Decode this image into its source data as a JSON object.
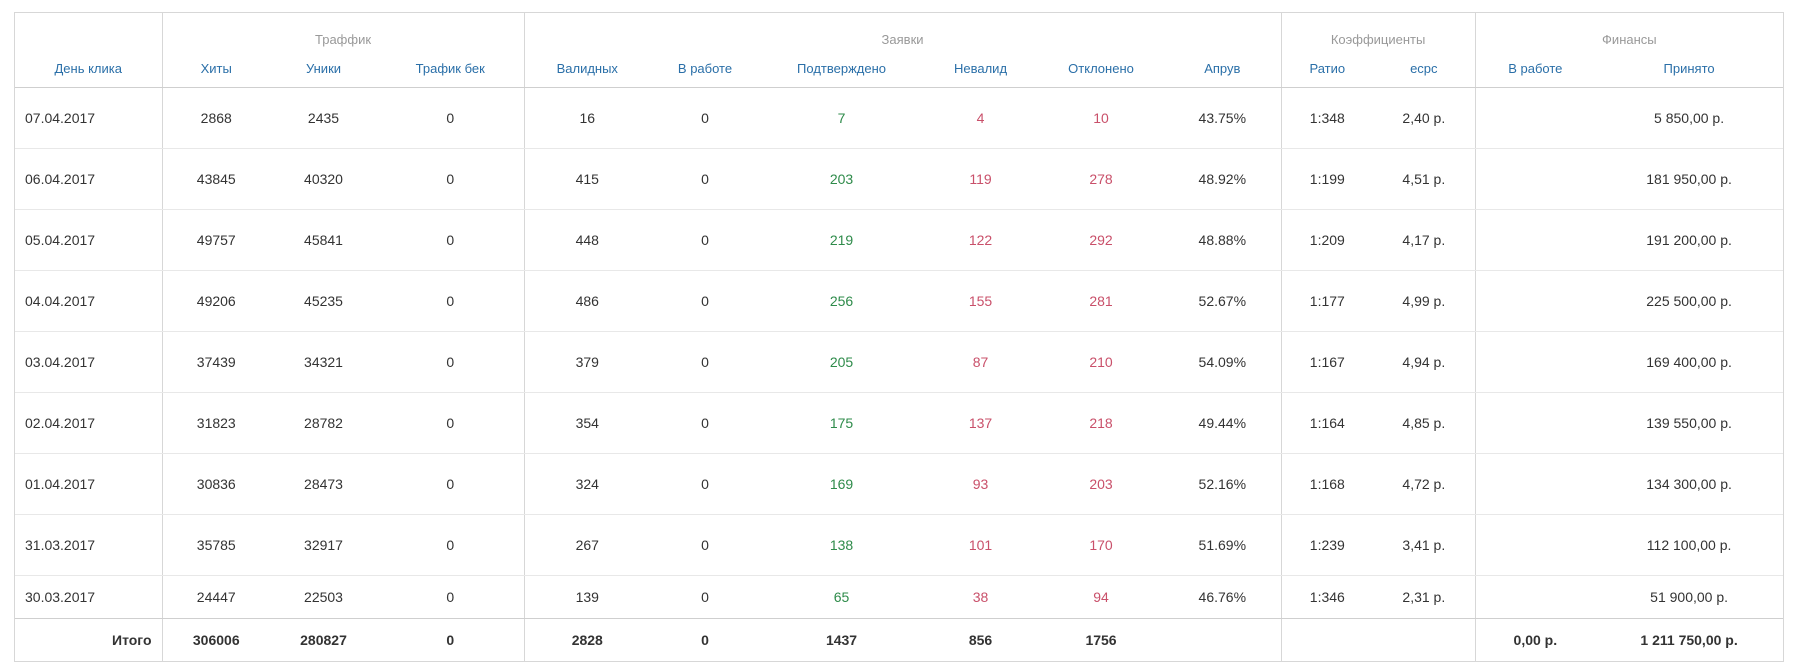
{
  "groups": {
    "traffic": "Траффик",
    "leads": "Заявки",
    "coeffs": "Коэффициенты",
    "finance": "Финансы"
  },
  "columns": {
    "day": "День клика",
    "hits": "Хиты",
    "uniques": "Уники",
    "traffic_back": "Трафик бек",
    "valid": "Валидных",
    "in_work": "В работе",
    "confirmed": "Подтверждено",
    "invalid": "Невалид",
    "rejected": "Отклонено",
    "approve": "Апрув",
    "ratio": "Ратио",
    "ecpc": "ecpc",
    "fin_in_work": "В работе",
    "accepted": "Принято"
  },
  "rows": [
    {
      "day": "07.04.2017",
      "hits": "2868",
      "uniques": "2435",
      "traffic_back": "0",
      "valid": "16",
      "in_work": "0",
      "confirmed": "7",
      "invalid": "4",
      "rejected": "10",
      "approve": "43.75%",
      "ratio": "1:348",
      "ecpc": "2,40 р.",
      "fin_in_work": "",
      "accepted": "5 850,00 р."
    },
    {
      "day": "06.04.2017",
      "hits": "43845",
      "uniques": "40320",
      "traffic_back": "0",
      "valid": "415",
      "in_work": "0",
      "confirmed": "203",
      "invalid": "119",
      "rejected": "278",
      "approve": "48.92%",
      "ratio": "1:199",
      "ecpc": "4,51 р.",
      "fin_in_work": "",
      "accepted": "181 950,00 р."
    },
    {
      "day": "05.04.2017",
      "hits": "49757",
      "uniques": "45841",
      "traffic_back": "0",
      "valid": "448",
      "in_work": "0",
      "confirmed": "219",
      "invalid": "122",
      "rejected": "292",
      "approve": "48.88%",
      "ratio": "1:209",
      "ecpc": "4,17 р.",
      "fin_in_work": "",
      "accepted": "191 200,00 р."
    },
    {
      "day": "04.04.2017",
      "hits": "49206",
      "uniques": "45235",
      "traffic_back": "0",
      "valid": "486",
      "in_work": "0",
      "confirmed": "256",
      "invalid": "155",
      "rejected": "281",
      "approve": "52.67%",
      "ratio": "1:177",
      "ecpc": "4,99 р.",
      "fin_in_work": "",
      "accepted": "225 500,00 р."
    },
    {
      "day": "03.04.2017",
      "hits": "37439",
      "uniques": "34321",
      "traffic_back": "0",
      "valid": "379",
      "in_work": "0",
      "confirmed": "205",
      "invalid": "87",
      "rejected": "210",
      "approve": "54.09%",
      "ratio": "1:167",
      "ecpc": "4,94 р.",
      "fin_in_work": "",
      "accepted": "169 400,00 р."
    },
    {
      "day": "02.04.2017",
      "hits": "31823",
      "uniques": "28782",
      "traffic_back": "0",
      "valid": "354",
      "in_work": "0",
      "confirmed": "175",
      "invalid": "137",
      "rejected": "218",
      "approve": "49.44%",
      "ratio": "1:164",
      "ecpc": "4,85 р.",
      "fin_in_work": "",
      "accepted": "139 550,00 р."
    },
    {
      "day": "01.04.2017",
      "hits": "30836",
      "uniques": "28473",
      "traffic_back": "0",
      "valid": "324",
      "in_work": "0",
      "confirmed": "169",
      "invalid": "93",
      "rejected": "203",
      "approve": "52.16%",
      "ratio": "1:168",
      "ecpc": "4,72 р.",
      "fin_in_work": "",
      "accepted": "134 300,00 р."
    },
    {
      "day": "31.03.2017",
      "hits": "35785",
      "uniques": "32917",
      "traffic_back": "0",
      "valid": "267",
      "in_work": "0",
      "confirmed": "138",
      "invalid": "101",
      "rejected": "170",
      "approve": "51.69%",
      "ratio": "1:239",
      "ecpc": "3,41 р.",
      "fin_in_work": "",
      "accepted": "112 100,00 р."
    },
    {
      "day": "30.03.2017",
      "hits": "24447",
      "uniques": "22503",
      "traffic_back": "0",
      "valid": "139",
      "in_work": "0",
      "confirmed": "65",
      "invalid": "38",
      "rejected": "94",
      "approve": "46.76%",
      "ratio": "1:346",
      "ecpc": "2,31 р.",
      "fin_in_work": "",
      "accepted": "51 900,00 р."
    }
  ],
  "totals": {
    "label": "Итого",
    "hits": "306006",
    "uniques": "280827",
    "traffic_back": "0",
    "valid": "2828",
    "in_work": "0",
    "confirmed": "1437",
    "invalid": "856",
    "rejected": "1756",
    "approve": "",
    "ratio": "",
    "ecpc": "",
    "fin_in_work": "0,00 р.",
    "accepted": "1 211 750,00 р."
  },
  "colors": {
    "confirmed": "#2e8b4a",
    "negative": "#c9506a",
    "header_link": "#2a6fa8",
    "group_header": "#999999"
  }
}
